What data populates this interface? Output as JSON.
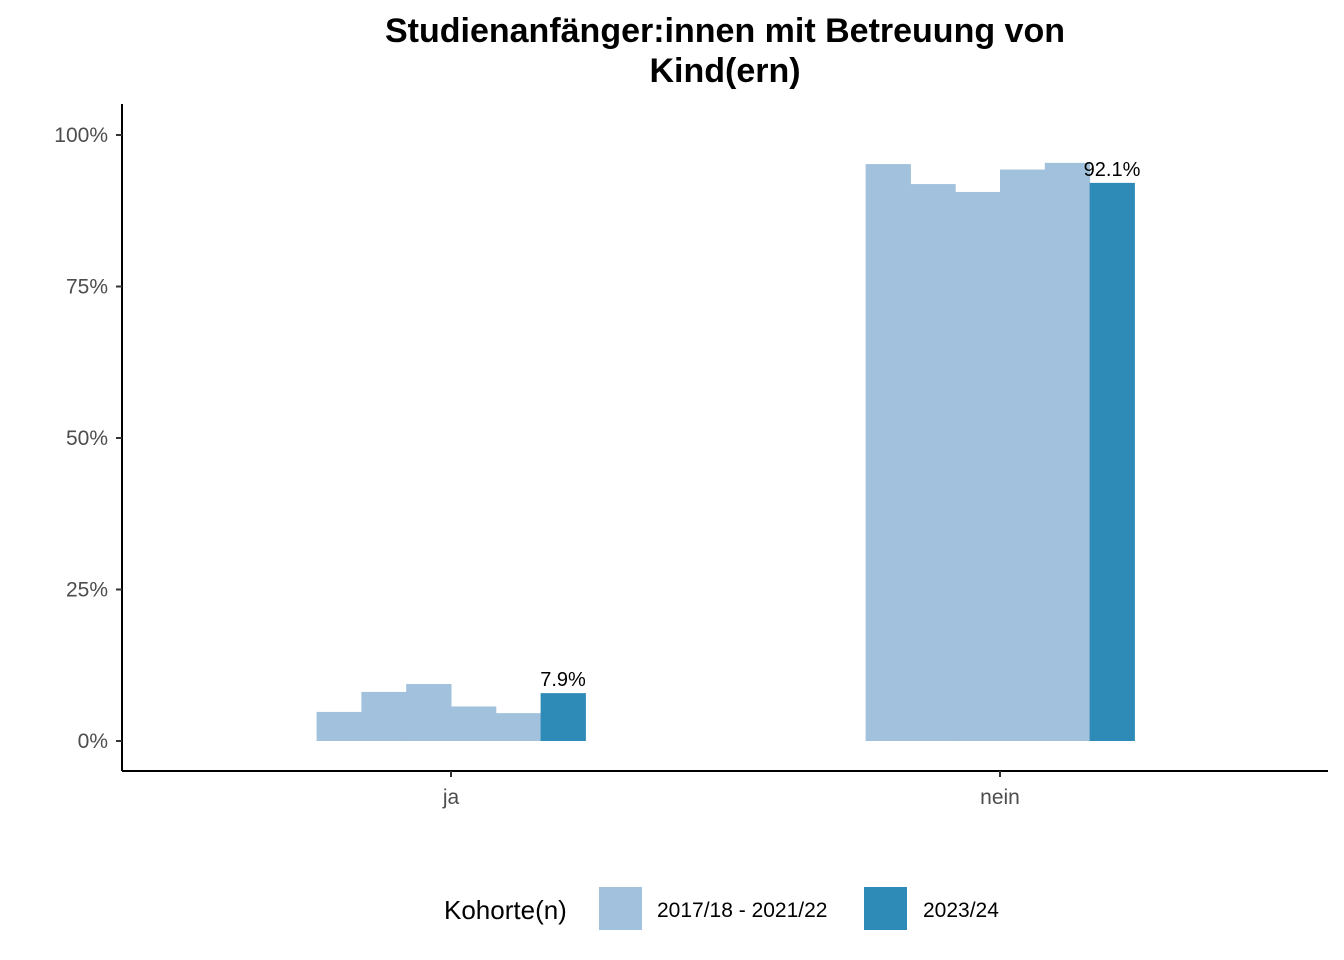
{
  "chart_data": {
    "type": "bar",
    "title_lines": [
      "Studienanfänger:innen mit Betreuung von",
      "Kind(ern)"
    ],
    "xlabel": "",
    "ylabel": "",
    "categories": [
      "ja",
      "nein"
    ],
    "ylim": [
      0,
      100
    ],
    "yticks": [
      0,
      25,
      50,
      75,
      100
    ],
    "ytick_labels": [
      "0%",
      "25%",
      "50%",
      "75%",
      "100%"
    ],
    "grid": false,
    "legend": {
      "title": "Kohorte(n)",
      "placement": "bottom",
      "entries": [
        {
          "label": "2017/18 - 2021/22",
          "color": "#a2c1dd"
        },
        {
          "label": "2023/24",
          "color": "#2e8bb7"
        }
      ]
    },
    "series": [
      {
        "name": "2017/18 - 2021/22",
        "group": "2017/18 - 2021/22",
        "color": "#a2c1dd",
        "values": [
          4.8,
          95.2
        ]
      },
      {
        "name": "2017/18 - 2021/22",
        "group": "2017/18 - 2021/22",
        "color": "#a2c1dd",
        "values": [
          8.1,
          91.9
        ]
      },
      {
        "name": "2017/18 - 2021/22",
        "group": "2017/18 - 2021/22",
        "color": "#a2c1dd",
        "values": [
          9.4,
          90.6
        ]
      },
      {
        "name": "2017/18 - 2021/22",
        "group": "2017/18 - 2021/22",
        "color": "#a2c1dd",
        "values": [
          5.7,
          94.3
        ]
      },
      {
        "name": "2017/18 - 2021/22",
        "group": "2017/18 - 2021/22",
        "color": "#a2c1dd",
        "values": [
          4.6,
          95.4
        ]
      },
      {
        "name": "2023/24",
        "group": "2023/24",
        "color": "#2e8bb7",
        "values": [
          7.9,
          92.1
        ]
      }
    ],
    "data_labels": [
      {
        "category": "ja",
        "series_index": 5,
        "text": "7.9%"
      },
      {
        "category": "nein",
        "series_index": 5,
        "text": "92.1%"
      }
    ]
  }
}
